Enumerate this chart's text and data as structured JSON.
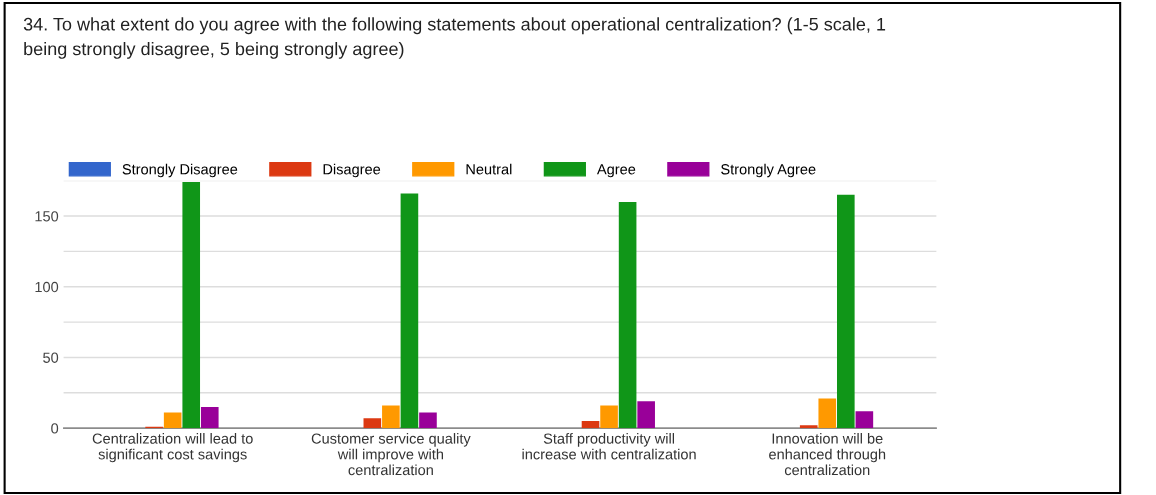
{
  "chart_data": {
    "type": "bar",
    "title": "34. To what extent do you agree with the following statements about operational centralization? (1-5 scale, 1\nbeing strongly disagree, 5 being strongly agree)",
    "categories": [
      "Centralization will lead to\nsignificant cost savings",
      "Customer service quality\nwill improve with\ncentralization",
      "Staff productivity will\nincrease with centralization",
      "Innovation will be\nenhanced through\ncentralization"
    ],
    "series": [
      {
        "name": "Strongly Disagree",
        "color": "#3366cc",
        "values": [
          0,
          0,
          0,
          0
        ]
      },
      {
        "name": "Disagree",
        "color": "#dc3912",
        "values": [
          1,
          7,
          5,
          2
        ]
      },
      {
        "name": "Neutral",
        "color": "#ff9900",
        "values": [
          11,
          16,
          16,
          21
        ]
      },
      {
        "name": "Agree",
        "color": "#109618",
        "values": [
          174,
          166,
          160,
          165
        ]
      },
      {
        "name": "Strongly Agree",
        "color": "#990099",
        "values": [
          15,
          11,
          19,
          12
        ]
      }
    ],
    "ylim": [
      0,
      175
    ],
    "yticks": [
      0,
      {
        "value": 25,
        "label": null
      },
      50,
      {
        "value": 75,
        "label": null
      },
      100,
      {
        "value": 125,
        "label": null
      },
      150,
      {
        "value": 175,
        "label": null
      }
    ],
    "grid": "y",
    "legend": "top"
  }
}
